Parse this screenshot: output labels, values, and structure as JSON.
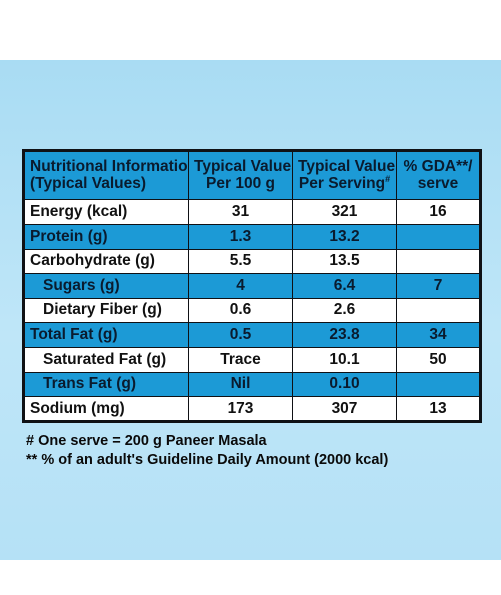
{
  "table": {
    "headers": [
      {
        "line1": "Nutritional Information",
        "line2": "(Typical Values)"
      },
      {
        "line1": "Typical Values",
        "line2": "Per 100 g"
      },
      {
        "line1": "Typical Values",
        "line2": "Per Serving",
        "sup": "#"
      },
      {
        "line1": "% GDA**/",
        "line2": "serve"
      }
    ],
    "rows": [
      {
        "label": "Energy (kcal)",
        "per100": "31",
        "perServing": "321",
        "gda": "16"
      },
      {
        "label": "Protein (g)",
        "per100": "1.3",
        "perServing": "13.2",
        "gda": ""
      },
      {
        "label": "Carbohydrate (g)",
        "per100": "5.5",
        "perServing": "13.5",
        "gda": ""
      },
      {
        "label": "Sugars (g)",
        "per100": "4",
        "perServing": "6.4",
        "gda": "7"
      },
      {
        "label": "Dietary Fiber (g)",
        "per100": "0.6",
        "perServing": "2.6",
        "gda": ""
      },
      {
        "label": "Total Fat (g)",
        "per100": "0.5",
        "perServing": "23.8",
        "gda": "34"
      },
      {
        "label": "Saturated Fat (g)",
        "per100": "Trace",
        "perServing": "10.1",
        "gda": "50"
      },
      {
        "label": "Trans Fat (g)",
        "per100": "Nil",
        "perServing": "0.10",
        "gda": ""
      },
      {
        "label": "Sodium (mg)",
        "per100": "173",
        "perServing": "307",
        "gda": "13"
      }
    ]
  },
  "notes": [
    "# One serve = 200 g Paneer Masala",
    "** % of an adult's Guideline Daily Amount (2000 kcal)"
  ],
  "colors": {
    "header_blue": "#1c9ad6",
    "row_blue": "#1c9ad6",
    "background": "#b5e1f6",
    "border": "#0f1115"
  }
}
